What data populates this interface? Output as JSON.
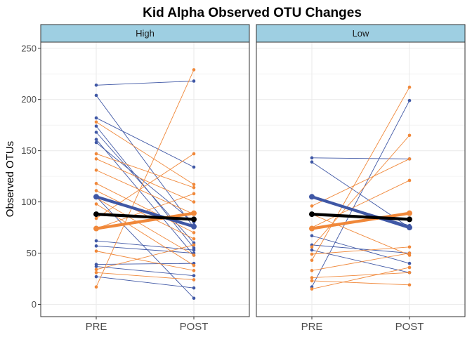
{
  "chart_data": {
    "type": "line",
    "title": "Kid Alpha Observed OTU Changes",
    "xlabel": "",
    "ylabel": "Observed OTUs",
    "x_categories": [
      "PRE",
      "POST"
    ],
    "ylim": [
      -12,
      256
    ],
    "y_ticks": [
      0,
      50,
      100,
      150,
      200,
      250
    ],
    "grid": true,
    "colors": {
      "blue": "#3f57a5",
      "orange": "#f0883a",
      "overall": "#000000",
      "strip_fill": "#9ecfe2",
      "grid": "#ebebeb",
      "panel_border": "#333333"
    },
    "panels": [
      {
        "label": "High",
        "lines": [
          {
            "color": "blue",
            "pre": 214,
            "post": 218
          },
          {
            "color": "blue",
            "pre": 204,
            "post": 75
          },
          {
            "color": "blue",
            "pre": 182,
            "post": 134
          },
          {
            "color": "blue",
            "pre": 174,
            "post": 55
          },
          {
            "color": "blue",
            "pre": 168,
            "post": 60
          },
          {
            "color": "blue",
            "pre": 161,
            "post": 48
          },
          {
            "color": "blue",
            "pre": 158,
            "post": 80
          },
          {
            "color": "blue",
            "pre": 105,
            "post": 6
          },
          {
            "color": "blue",
            "pre": 62,
            "post": 53
          },
          {
            "color": "blue",
            "pre": 57,
            "post": 50
          },
          {
            "color": "blue",
            "pre": 39,
            "post": 40
          },
          {
            "color": "blue",
            "pre": 37,
            "post": 28
          },
          {
            "color": "blue",
            "pre": 27,
            "post": 16
          },
          {
            "color": "orange",
            "pre": 178,
            "post": 117
          },
          {
            "color": "orange",
            "pre": 147,
            "post": 114
          },
          {
            "color": "orange",
            "pre": 142,
            "post": 100
          },
          {
            "color": "orange",
            "pre": 131,
            "post": 88
          },
          {
            "color": "orange",
            "pre": 118,
            "post": 70
          },
          {
            "color": "orange",
            "pre": 111,
            "post": 64
          },
          {
            "color": "orange",
            "pre": 104,
            "post": 48
          },
          {
            "color": "orange",
            "pre": 98,
            "post": 38
          },
          {
            "color": "orange",
            "pre": 84,
            "post": 147
          },
          {
            "color": "orange",
            "pre": 74,
            "post": 108
          },
          {
            "color": "orange",
            "pre": 52,
            "post": 33
          },
          {
            "color": "orange",
            "pre": 34,
            "post": 58
          },
          {
            "color": "orange",
            "pre": 31,
            "post": 24
          },
          {
            "color": "orange",
            "pre": 17,
            "post": 229
          }
        ],
        "means": [
          {
            "color": "blue",
            "pre": 105,
            "post": 76
          },
          {
            "color": "orange",
            "pre": 74,
            "post": 89
          },
          {
            "color": "overall",
            "pre": 88,
            "post": 83
          }
        ]
      },
      {
        "label": "Low",
        "lines": [
          {
            "color": "blue",
            "pre": 143,
            "post": 142
          },
          {
            "color": "blue",
            "pre": 139,
            "post": 75
          },
          {
            "color": "blue",
            "pre": 105,
            "post": 77
          },
          {
            "color": "blue",
            "pre": 67,
            "post": 40
          },
          {
            "color": "blue",
            "pre": 58,
            "post": 50
          },
          {
            "color": "blue",
            "pre": 53,
            "post": 31
          },
          {
            "color": "blue",
            "pre": 17,
            "post": 199
          },
          {
            "color": "orange",
            "pre": 96,
            "post": 142
          },
          {
            "color": "orange",
            "pre": 88,
            "post": 48
          },
          {
            "color": "orange",
            "pre": 75,
            "post": 121
          },
          {
            "color": "orange",
            "pre": 56,
            "post": 165
          },
          {
            "color": "orange",
            "pre": 49,
            "post": 56
          },
          {
            "color": "orange",
            "pre": 43,
            "post": 212
          },
          {
            "color": "orange",
            "pre": 33,
            "post": 50
          },
          {
            "color": "orange",
            "pre": 26,
            "post": 31
          },
          {
            "color": "orange",
            "pre": 23,
            "post": 19
          },
          {
            "color": "orange",
            "pre": 15,
            "post": 36
          }
        ],
        "means": [
          {
            "color": "blue",
            "pre": 105,
            "post": 75
          },
          {
            "color": "orange",
            "pre": 74,
            "post": 89
          },
          {
            "color": "overall",
            "pre": 88,
            "post": 83
          }
        ]
      }
    ]
  }
}
